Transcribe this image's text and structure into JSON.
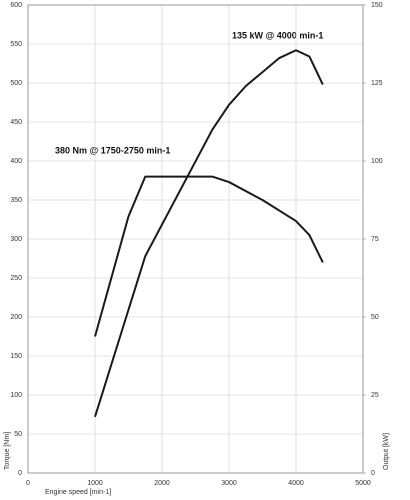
{
  "chart_data": {
    "type": "line",
    "annotations": [
      "135 kW @ 4000 min-1",
      "380 Nm @ 1750-2750 min-1"
    ],
    "xlabel": "Engine speed [min-1]",
    "ylabel": "Torque [Nm]",
    "y2label": "Output [kW]",
    "xlim": [
      0,
      5000
    ],
    "xticks": [
      0,
      1000,
      2000,
      3000,
      4000,
      5000
    ],
    "ylim": [
      0,
      600
    ],
    "yticks": [
      0,
      50,
      100,
      150,
      200,
      250,
      300,
      350,
      400,
      450,
      500,
      550,
      600
    ],
    "y2lim": [
      0,
      150
    ],
    "y2ticks": [
      0,
      25,
      50,
      75,
      100,
      125,
      150
    ],
    "grid": true,
    "series": [
      {
        "color": "#1a1a1a",
        "x": [
          1000,
          1500,
          1750,
          2750,
          3000,
          3500,
          4000,
          4200,
          4400
        ],
        "values": [
          175,
          329,
          380,
          380,
          373,
          350,
          323,
          305,
          270
        ]
      },
      {
        "color": "#1a1a1a",
        "axis": "y2",
        "x": [
          1000,
          1750,
          2750,
          3000,
          3250,
          3500,
          3750,
          4000,
          4200,
          4400
        ],
        "values": [
          18,
          69.5,
          110,
          118,
          124,
          128.5,
          133,
          135.5,
          133.5,
          124.5
        ]
      }
    ]
  }
}
